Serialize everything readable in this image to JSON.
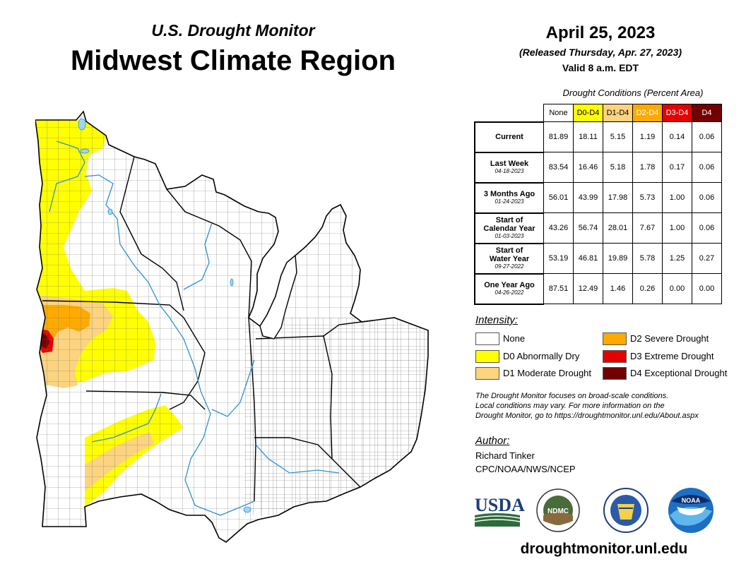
{
  "header": {
    "subtitle": "U.S. Drought Monitor",
    "title": "Midwest Climate Region",
    "date": "April 25, 2023",
    "released": "(Released Thursday, Apr. 27, 2023)",
    "valid": "Valid 8 a.m. EDT"
  },
  "table": {
    "caption": "Drought Conditions (Percent Area)",
    "columns": [
      {
        "label": "None",
        "color": "#ffffff",
        "text_color": "#000000"
      },
      {
        "label": "D0-D4",
        "color": "#ffff00",
        "text_color": "#000000"
      },
      {
        "label": "D1-D4",
        "color": "#fcd37f",
        "text_color": "#000000"
      },
      {
        "label": "D2-D4",
        "color": "#ffaa00",
        "text_color": "#ffffff"
      },
      {
        "label": "D3-D4",
        "color": "#e60000",
        "text_color": "#ffffff"
      },
      {
        "label": "D4",
        "color": "#730000",
        "text_color": "#ffffff"
      }
    ],
    "rows": [
      {
        "label": "Current",
        "label2": "",
        "date": "",
        "values": [
          "81.89",
          "18.11",
          "5.15",
          "1.19",
          "0.14",
          "0.06"
        ]
      },
      {
        "label": "Last Week",
        "label2": "",
        "date": "04-18-2023",
        "values": [
          "83.54",
          "16.46",
          "5.18",
          "1.78",
          "0.17",
          "0.06"
        ]
      },
      {
        "label": "3 Months Ago",
        "label2": "",
        "date": "01-24-2023",
        "values": [
          "56.01",
          "43.99",
          "17.98",
          "5.73",
          "1.00",
          "0.06"
        ]
      },
      {
        "label": "Start of",
        "label2": "Calendar Year",
        "date": "01-03-2023",
        "values": [
          "43.26",
          "56.74",
          "28.01",
          "7.67",
          "1.00",
          "0.06"
        ]
      },
      {
        "label": "Start of",
        "label2": "Water Year",
        "date": "09-27-2022",
        "values": [
          "53.19",
          "46.81",
          "19.89",
          "5.78",
          "1.25",
          "0.27"
        ]
      },
      {
        "label": "One Year Ago",
        "label2": "",
        "date": "04-26-2022",
        "values": [
          "87.51",
          "12.49",
          "1.46",
          "0.26",
          "0.00",
          "0.00"
        ]
      }
    ]
  },
  "legend": {
    "title": "Intensity:",
    "items": [
      {
        "label": "None",
        "color": "#ffffff"
      },
      {
        "label": "D0 Abnormally Dry",
        "color": "#ffff00"
      },
      {
        "label": "D1 Moderate Drought",
        "color": "#fcd37f"
      },
      {
        "label": "D2 Severe Drought",
        "color": "#ffaa00"
      },
      {
        "label": "D3 Extreme Drought",
        "color": "#e60000"
      },
      {
        "label": "D4 Exceptional Drought",
        "color": "#730000"
      }
    ]
  },
  "note": {
    "line1": "The Drought Monitor focuses on broad-scale conditions.",
    "line2": "Local conditions may vary. For more information on the",
    "line3": "Drought Monitor, go to https://droughtmonitor.unl.edu/About.aspx"
  },
  "author": {
    "label": "Author:",
    "name": "Richard Tinker",
    "org": "CPC/NOAA/NWS/NCEP"
  },
  "logos": {
    "usda": "USDA",
    "ndmc": "NDMC",
    "noaa": "NOAA"
  },
  "footer_url": "droughtmonitor.unl.edu",
  "colors": {
    "d0": "#ffff00",
    "d1": "#fcd37f",
    "d2": "#ffaa00",
    "d3": "#e60000",
    "d4": "#730000",
    "water": "#9fd6f2",
    "river": "#2e8fd8"
  }
}
